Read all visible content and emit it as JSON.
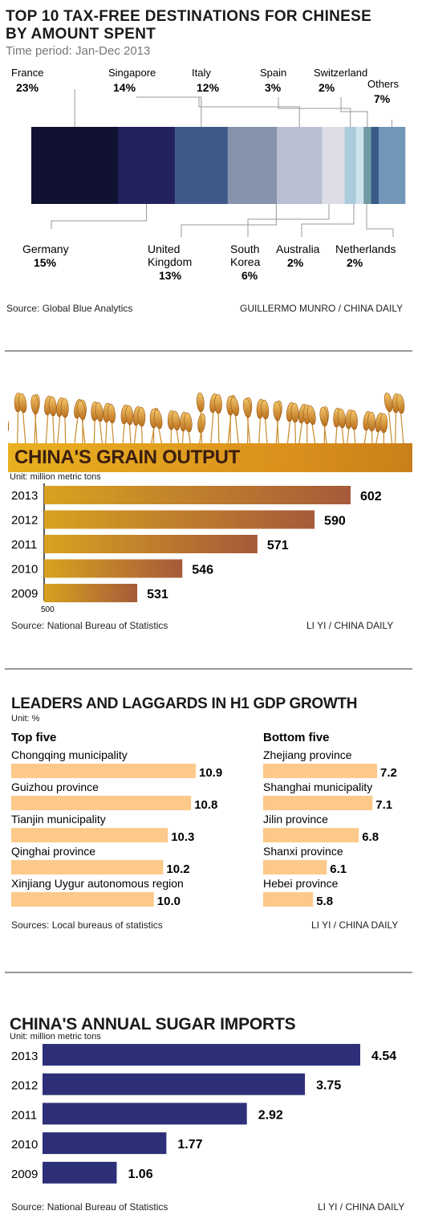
{
  "tax_free": {
    "title_line1": "TOP 10 TAX-FREE DESTINATIONS FOR CHINESE",
    "title_line2": "BY AMOUNT SPENT",
    "subtitle": "Time period: Jan-Dec 2013",
    "source": "Source: Global Blue Analytics",
    "credit": "GUILLERMO MUNRO / CHINA DAILY"
  },
  "grain": {
    "title": "CHINA'S GRAIN OUTPUT",
    "unit": "Unit: million metric tons",
    "source": "Source: National Bureau of Statistics",
    "credit": "LI YI / CHINA DAILY"
  },
  "gdp": {
    "title": "LEADERS AND LAGGARDS IN H1 GDP GROWTH",
    "unit": "Unit: %",
    "top_header": "Top five",
    "bottom_header": "Bottom five",
    "source": "Sources: Local bureaus of statistics",
    "credit": "LI YI / CHINA DAILY"
  },
  "sugar": {
    "title": "CHINA'S ANNUAL SUGAR IMPORTS",
    "unit": "Unit: million metric tons",
    "source": "Source: National Bureau of Statistics",
    "credit": "LI YI / CHINA DAILY"
  },
  "colors": {
    "grain_bar_start": "#d9a21f",
    "grain_bar_end": "#a65a3a",
    "gdp_bar": "#fcc98a",
    "sugar_bar": "#2d3079",
    "banner": "#e7a71a"
  },
  "chart_data": [
    {
      "type": "bar",
      "orientation": "stacked-horizontal",
      "title": "TOP 10 TAX-FREE DESTINATIONS FOR CHINESE BY AMOUNT SPENT",
      "categories": [
        "France",
        "Germany",
        "Singapore",
        "United Kingdom",
        "Italy",
        "South Korea",
        "Spain",
        "Australia",
        "Switzerland",
        "Netherlands",
        "Others"
      ],
      "display_labels": [
        "France",
        "Germany",
        "Singapore",
        "United\nKingdom",
        "Italy",
        "South\nKorea",
        "Spain",
        "Australia",
        "Switzerland",
        "Netherlands",
        "Others"
      ],
      "values": [
        23,
        15,
        14,
        13,
        12,
        6,
        3,
        2,
        2,
        2,
        7
      ],
      "value_labels": [
        "23%",
        "15%",
        "14%",
        "13%",
        "12%",
        "6%",
        "3%",
        "2%",
        "2%",
        "2%",
        "7%"
      ],
      "colors": [
        "#111133",
        "#23225e",
        "#3e5988",
        "#8793ad",
        "#b8bfd2",
        "#dcdde6",
        "#a9cbdb",
        "#cfe3ec",
        "#6f9ba4",
        "#3b5a88",
        "#7196b8"
      ]
    },
    {
      "type": "bar",
      "orientation": "horizontal",
      "title": "CHINA'S GRAIN OUTPUT",
      "categories": [
        "2013",
        "2012",
        "2011",
        "2010",
        "2009"
      ],
      "values": [
        602,
        590,
        571,
        546,
        531
      ],
      "axis_min": 500,
      "axis_min_label": "500",
      "xlim": [
        500,
        622
      ]
    },
    {
      "type": "bar",
      "orientation": "horizontal",
      "title": "LEADERS AND LAGGARDS IN H1 GDP GROWTH",
      "series": [
        {
          "name": "Top five",
          "categories": [
            "Chongqing municipality",
            "Guizhou province",
            "Tianjin municipality",
            "Qinghai province",
            "Xinjiang Uygur autonomous region"
          ],
          "values": [
            10.9,
            10.8,
            10.3,
            10.2,
            10.0
          ],
          "value_labels": [
            "10.9",
            "10.8",
            "10.3",
            "10.2",
            "10.0"
          ]
        },
        {
          "name": "Bottom five",
          "categories": [
            "Zhejiang province",
            "Shanghai municipality",
            "Jilin province",
            "Shanxi province",
            "Hebei province"
          ],
          "values": [
            7.2,
            7.1,
            6.8,
            6.1,
            5.8
          ],
          "value_labels": [
            "7.2",
            "7.1",
            "6.8",
            "6.1",
            "5.8"
          ]
        }
      ]
    },
    {
      "type": "bar",
      "orientation": "horizontal",
      "title": "CHINA'S ANNUAL SUGAR IMPORTS",
      "categories": [
        "2013",
        "2012",
        "2011",
        "2010",
        "2009"
      ],
      "values": [
        4.54,
        3.75,
        2.92,
        1.77,
        1.06
      ],
      "value_labels": [
        "4.54",
        "3.75",
        "2.92",
        "1.77",
        "1.06"
      ],
      "xlim": [
        0,
        4.84
      ]
    }
  ]
}
